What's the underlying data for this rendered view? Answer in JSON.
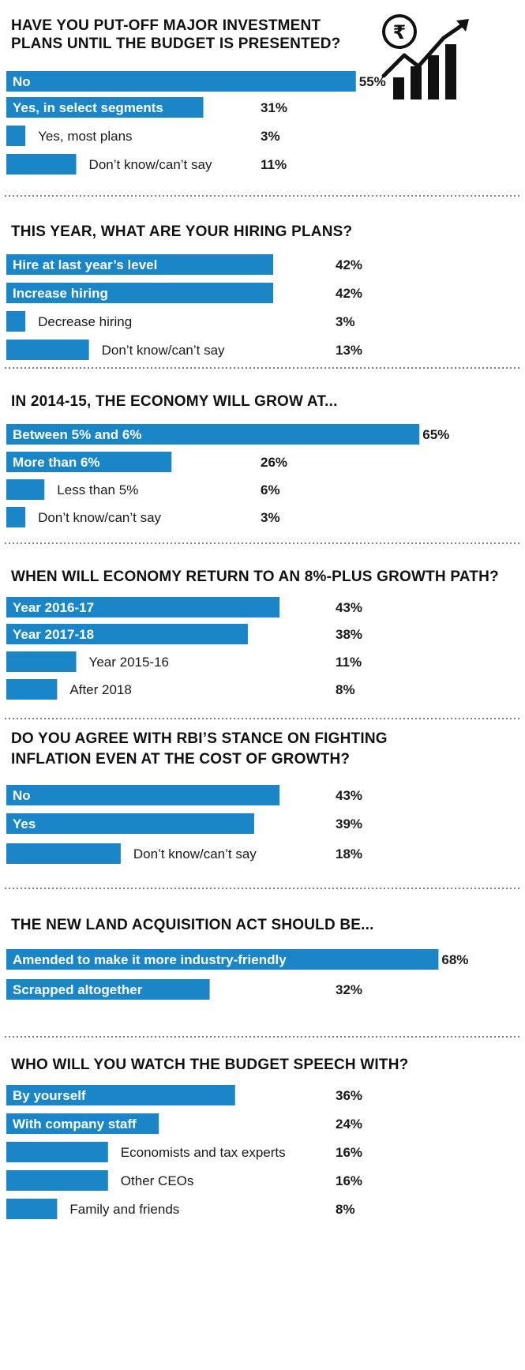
{
  "theme": {
    "bar_color": "#1a86c8",
    "text_color": "#1a1a1a"
  },
  "icon": {
    "name": "rupee-growth-chart-icon",
    "symbol": "₹"
  },
  "chart_data": [
    {
      "type": "bar",
      "orientation": "horizontal",
      "title": "HAVE YOU PUT-OFF MAJOR INVESTMENT PLANS UNTIL THE BUDGET IS PRESENTED?",
      "categories": [
        "No",
        "Yes, in select segments",
        "Yes, most plans",
        "Don't know/can't say"
      ],
      "values": [
        55,
        31,
        3,
        11
      ],
      "value_labels": [
        "55%",
        "31%",
        "3%",
        "11%"
      ],
      "unit": "%"
    },
    {
      "type": "bar",
      "orientation": "horizontal",
      "title": "THIS YEAR, WHAT ARE YOUR HIRING PLANS?",
      "categories": [
        "Hire at last year's level",
        "Increase hiring",
        "Decrease hiring",
        "Don't know/can't say"
      ],
      "values": [
        42,
        42,
        3,
        13
      ],
      "value_labels": [
        "42%",
        "42%",
        "3%",
        "13%"
      ],
      "unit": "%"
    },
    {
      "type": "bar",
      "orientation": "horizontal",
      "title": "IN 2014-15, THE ECONOMY WILL GROW AT...",
      "categories": [
        "Between 5% and 6%",
        "More than 6%",
        "Less than 5%",
        "Don't know/can't say"
      ],
      "values": [
        65,
        26,
        6,
        3
      ],
      "value_labels": [
        "65%",
        "26%",
        "6%",
        "3%"
      ],
      "unit": "%"
    },
    {
      "type": "bar",
      "orientation": "horizontal",
      "title": "WHEN WILL ECONOMY RETURN TO AN 8%-PLUS GROWTH PATH?",
      "categories": [
        "Year 2016-17",
        "Year 2017-18",
        "Year 2015-16",
        "After 2018"
      ],
      "values": [
        43,
        38,
        11,
        8
      ],
      "value_labels": [
        "43%",
        "38%",
        "11%",
        "8%"
      ],
      "unit": "%"
    },
    {
      "type": "bar",
      "orientation": "horizontal",
      "title": "DO YOU AGREE WITH RBI'S STANCE ON FIGHTING INFLATION EVEN AT THE COST OF GROWTH?",
      "categories": [
        "No",
        "Yes",
        "Don't know/can't say"
      ],
      "values": [
        43,
        39,
        18
      ],
      "value_labels": [
        "43%",
        "39%",
        "18%"
      ],
      "unit": "%"
    },
    {
      "type": "bar",
      "orientation": "horizontal",
      "title": "THE NEW LAND ACQUISITION ACT SHOULD BE...",
      "categories": [
        "Amended to make it more industry-friendly",
        "Scrapped altogether"
      ],
      "values": [
        68,
        32
      ],
      "value_labels": [
        "68%",
        "32%"
      ],
      "unit": "%"
    },
    {
      "type": "bar",
      "orientation": "horizontal",
      "title": "WHO WILL YOU WATCH THE BUDGET SPEECH WITH?",
      "categories": [
        "By yourself",
        "With company staff",
        "Economists and tax experts",
        "Other CEOs",
        "Family and friends"
      ],
      "values": [
        36,
        24,
        16,
        16,
        8
      ],
      "value_labels": [
        "36%",
        "24%",
        "16%",
        "16%",
        "8%"
      ],
      "unit": "%"
    }
  ]
}
